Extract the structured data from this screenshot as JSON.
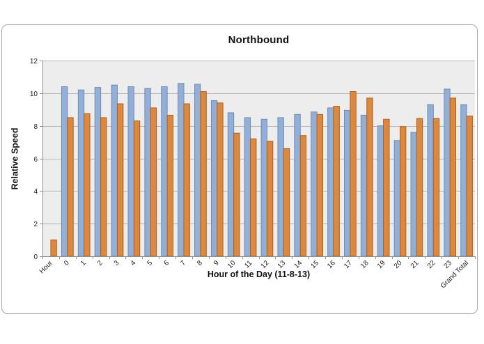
{
  "chart_data": {
    "type": "bar",
    "title": "Northbound",
    "xlabel": "Hour of the Day (11-8-13)",
    "ylabel": "Relative Speed",
    "categories": [
      "Hour",
      "0",
      "1",
      "2",
      "3",
      "4",
      "5",
      "6",
      "7",
      "8",
      "9",
      "10",
      "11",
      "12",
      "13",
      "14",
      "15",
      "16",
      "17",
      "18",
      "19",
      "20",
      "21",
      "22",
      "23",
      "Grand Total"
    ],
    "series": [
      {
        "name": "blue",
        "fill": "#92AFD7",
        "stroke": "#6E8CB5",
        "values": [
          null,
          10.4,
          10.2,
          10.35,
          10.5,
          10.4,
          10.3,
          10.4,
          10.6,
          10.55,
          9.55,
          8.8,
          8.5,
          8.4,
          8.5,
          8.7,
          8.85,
          9.1,
          8.95,
          8.65,
          8.0,
          7.1,
          7.6,
          9.3,
          10.25,
          9.3
        ]
      },
      {
        "name": "orange",
        "fill": "#DD8840",
        "stroke": "#AE6015",
        "values": [
          1.0,
          8.5,
          8.75,
          8.5,
          9.35,
          8.3,
          9.1,
          8.65,
          9.35,
          10.1,
          9.4,
          7.55,
          7.2,
          7.05,
          6.6,
          7.4,
          8.7,
          9.2,
          10.1,
          9.7,
          8.4,
          7.95,
          8.45,
          8.45,
          9.7,
          8.6
        ]
      }
    ],
    "ylim": [
      0,
      12
    ],
    "yticks": [
      0,
      2,
      4,
      6,
      8,
      10,
      12
    ],
    "grid": "horizontal gridlines on",
    "legend": "none",
    "colors": {
      "plot_bg": "#EDEDED",
      "gridline": "#b3b3b3",
      "axis": "#8f8f8f",
      "tick_label": "#1a1a1a"
    }
  }
}
